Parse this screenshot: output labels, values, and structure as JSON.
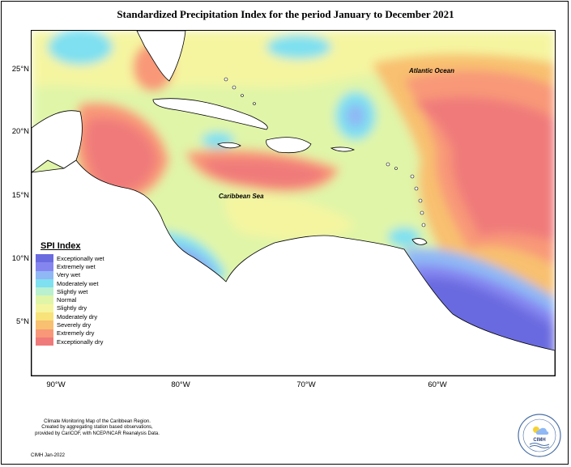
{
  "title": "Standardized Precipitation Index for the period January to December 2021",
  "map": {
    "lat_labels": [
      "25°N",
      "20°N",
      "15°N",
      "10°N",
      "5°N"
    ],
    "lon_labels": [
      "90°W",
      "80°W",
      "70°W",
      "60°W"
    ],
    "places": {
      "atlantic": "Atlantic Ocean",
      "caribbean": "Caribbean Sea"
    }
  },
  "legend": {
    "title": "SPI Index",
    "items": [
      {
        "label": "Exceptionally wet",
        "color": "#6b6be0"
      },
      {
        "label": "Extremely wet",
        "color": "#8585f0"
      },
      {
        "label": "Very wet",
        "color": "#8fb8f5"
      },
      {
        "label": "Moderately wet",
        "color": "#7ee0f0"
      },
      {
        "label": "Slightly wet",
        "color": "#b8f0d0"
      },
      {
        "label": "Normal",
        "color": "#e0f5a8"
      },
      {
        "label": "Slightly dry",
        "color": "#f5f5a0"
      },
      {
        "label": "Moderately dry",
        "color": "#f8e27a"
      },
      {
        "label": "Severely dry",
        "color": "#f8c070"
      },
      {
        "label": "Extremely dry",
        "color": "#f89878"
      },
      {
        "label": "Exceptionally dry",
        "color": "#f07a7a"
      }
    ]
  },
  "footer": {
    "line1": "Climate Monitoring Map of the Caribbean Region.",
    "line2": "Created by aggregating station based observations,",
    "line3": "provided by CariCOF, with NCEP/NCAR Reanalysis Data.",
    "credit": "CIMH Jan-2022",
    "logo_text": "CIMH"
  }
}
